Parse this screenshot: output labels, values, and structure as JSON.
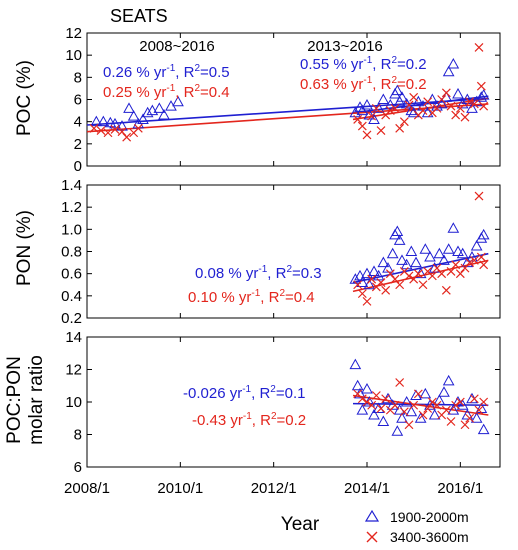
{
  "chart_data": [
    {
      "type": "scatter",
      "panel_label": "SEATS",
      "ylabel": "POC (%)",
      "ylim": [
        0,
        12
      ],
      "yticks": [
        0,
        2,
        4,
        6,
        8,
        10,
        12
      ],
      "period_labels": [
        "2008~2016",
        "2013~2016"
      ],
      "annotations": [
        {
          "text": "0.26 % yr",
          "sup": "-1",
          "rest": ", R",
          "r2sup": "2",
          "tail": "=0.5",
          "color": "#1f1fd1"
        },
        {
          "text": "0.25 % yr",
          "sup": "-1",
          "rest": ", R",
          "r2sup": "2",
          "tail": "=0.4",
          "color": "#e3261d"
        },
        {
          "text": "0.55 % yr",
          "sup": "-1",
          "rest": ", R",
          "r2sup": "2",
          "tail": "=0.2",
          "color": "#1f1fd1"
        },
        {
          "text": "0.63 % yr",
          "sup": "-1",
          "rest": ", R",
          "r2sup": "2",
          "tail": "=0.2",
          "color": "#e3261d"
        }
      ],
      "series": [
        {
          "name": "1900-2000m",
          "marker": "triangle",
          "color": "#1f1fd1",
          "x": [
            2008.2,
            2008.35,
            2008.5,
            2008.6,
            2008.75,
            2008.9,
            2009.0,
            2009.1,
            2009.2,
            2009.3,
            2009.4,
            2009.55,
            2009.65,
            2009.8,
            2009.95,
            2013.75,
            2013.85,
            2013.9,
            2014.0,
            2014.05,
            2014.15,
            2014.25,
            2014.35,
            2014.5,
            2014.6,
            2014.65,
            2014.7,
            2014.75,
            2014.85,
            2014.95,
            2015.0,
            2015.1,
            2015.2,
            2015.3,
            2015.4,
            2015.5,
            2015.6,
            2015.7,
            2015.75,
            2015.85,
            2015.95,
            2016.05,
            2016.15,
            2016.25,
            2016.35,
            2016.45,
            2016.5
          ],
          "y": [
            4.0,
            4.0,
            3.9,
            3.8,
            3.6,
            5.2,
            4.5,
            3.8,
            4.2,
            4.8,
            5.0,
            5.2,
            4.6,
            5.4,
            5.8,
            4.8,
            5.3,
            5.0,
            5.5,
            4.6,
            4.2,
            5.2,
            6.0,
            5.5,
            6.5,
            6.8,
            5.8,
            6.2,
            5.6,
            5.0,
            4.8,
            5.8,
            5.4,
            4.8,
            6.0,
            5.4,
            5.6,
            6.2,
            8.5,
            9.2,
            6.5,
            5.6,
            6.0,
            5.2,
            5.8,
            6.2,
            6.4
          ]
        },
        {
          "name": "3400-3600m",
          "marker": "x",
          "color": "#e3261d",
          "x": [
            2008.15,
            2008.3,
            2008.45,
            2008.6,
            2008.75,
            2008.85,
            2009.0,
            2009.1,
            2013.8,
            2013.9,
            2014.0,
            2014.1,
            2014.2,
            2014.3,
            2014.4,
            2014.5,
            2014.6,
            2014.7,
            2014.8,
            2014.9,
            2015.0,
            2015.1,
            2015.2,
            2015.3,
            2015.4,
            2015.5,
            2015.6,
            2015.7,
            2015.8,
            2015.9,
            2016.0,
            2016.1,
            2016.2,
            2016.3,
            2016.4,
            2016.45,
            2016.5
          ],
          "y": [
            3.4,
            3.2,
            3.0,
            3.3,
            3.1,
            2.6,
            3.0,
            3.4,
            4.2,
            3.6,
            2.8,
            4.5,
            5.2,
            3.2,
            4.6,
            5.0,
            5.2,
            3.4,
            4.0,
            5.5,
            6.2,
            4.6,
            5.0,
            5.8,
            4.8,
            5.2,
            6.0,
            6.6,
            5.4,
            4.6,
            5.2,
            4.4,
            5.8,
            5.6,
            10.7,
            7.2,
            5.4
          ]
        }
      ],
      "trend_lines": [
        {
          "color": "#1f1fd1",
          "x": [
            2008.0,
            2016.6
          ],
          "y": [
            3.7,
            6.1
          ]
        },
        {
          "color": "#1f1fd1",
          "x": [
            2013.7,
            2016.6
          ],
          "y": [
            4.8,
            6.3
          ]
        },
        {
          "color": "#e3261d",
          "x": [
            2008.0,
            2016.6
          ],
          "y": [
            3.1,
            5.6
          ]
        },
        {
          "color": "#e3261d",
          "x": [
            2013.7,
            2016.6
          ],
          "y": [
            4.2,
            6.1
          ]
        }
      ]
    },
    {
      "type": "scatter",
      "ylabel": "PON (%)",
      "ylim": [
        0.2,
        1.4
      ],
      "yticks": [
        0.2,
        0.4,
        0.6,
        0.8,
        1.0,
        1.2,
        1.4
      ],
      "annotations": [
        {
          "text": "0.08 % yr",
          "sup": "-1",
          "rest": ", R",
          "r2sup": "2",
          "tail": "=0.3",
          "color": "#1f1fd1"
        },
        {
          "text": "0.10 % yr",
          "sup": "-1",
          "rest": ", R",
          "r2sup": "2",
          "tail": "=0.4",
          "color": "#e3261d"
        }
      ],
      "series": [
        {
          "name": "1900-2000m",
          "marker": "triangle",
          "color": "#1f1fd1",
          "x": [
            2013.75,
            2013.85,
            2013.9,
            2014.0,
            2014.05,
            2014.15,
            2014.25,
            2014.35,
            2014.45,
            2014.55,
            2014.6,
            2014.65,
            2014.7,
            2014.75,
            2014.85,
            2014.95,
            2015.05,
            2015.15,
            2015.25,
            2015.35,
            2015.45,
            2015.55,
            2015.65,
            2015.75,
            2015.85,
            2015.95,
            2016.05,
            2016.15,
            2016.25,
            2016.35,
            2016.45,
            2016.5
          ],
          "y": [
            0.55,
            0.58,
            0.52,
            0.6,
            0.5,
            0.62,
            0.58,
            0.7,
            0.65,
            0.78,
            0.95,
            0.98,
            0.9,
            0.72,
            0.68,
            0.8,
            0.7,
            0.6,
            0.82,
            0.75,
            0.65,
            0.78,
            0.72,
            0.82,
            1.01,
            0.8,
            0.78,
            0.7,
            0.75,
            0.85,
            0.92,
            0.95
          ]
        },
        {
          "name": "3400-3600m",
          "marker": "x",
          "color": "#e3261d",
          "x": [
            2013.8,
            2013.9,
            2014.0,
            2014.1,
            2014.2,
            2014.3,
            2014.4,
            2014.5,
            2014.6,
            2014.7,
            2014.8,
            2014.9,
            2015.0,
            2015.1,
            2015.2,
            2015.3,
            2015.4,
            2015.5,
            2015.6,
            2015.7,
            2015.8,
            2015.9,
            2016.0,
            2016.1,
            2016.2,
            2016.3,
            2016.4,
            2016.45,
            2016.5
          ],
          "y": [
            0.5,
            0.42,
            0.35,
            0.55,
            0.48,
            0.52,
            0.45,
            0.6,
            0.55,
            0.5,
            0.62,
            0.58,
            0.55,
            0.6,
            0.5,
            0.62,
            0.58,
            0.65,
            0.6,
            0.45,
            0.62,
            0.68,
            0.6,
            0.65,
            0.7,
            0.72,
            1.3,
            0.75,
            0.68
          ]
        }
      ],
      "trend_lines": [
        {
          "color": "#1f1fd1",
          "x": [
            2013.7,
            2016.6
          ],
          "y": [
            0.52,
            0.78
          ]
        },
        {
          "color": "#e3261d",
          "x": [
            2013.7,
            2016.6
          ],
          "y": [
            0.44,
            0.72
          ]
        }
      ]
    },
    {
      "type": "scatter",
      "ylabel_line1": "POC:PON",
      "ylabel_line2": "molar ratio",
      "ylim": [
        6,
        14
      ],
      "yticks": [
        6,
        8,
        10,
        12,
        14
      ],
      "xlim": [
        2008.0,
        2016.85
      ],
      "xticks": [
        2008.0,
        2010.0,
        2012.0,
        2014.0,
        2016.0
      ],
      "xticklabels": [
        "2008/1",
        "2010/1",
        "2012/1",
        "2014/1",
        "2016/1"
      ],
      "xlabel": "Year",
      "annotations": [
        {
          "text": "-0.026 yr",
          "sup": "-1",
          "rest": ", R",
          "r2sup": "2",
          "tail": "=0.1",
          "color": "#1f1fd1"
        },
        {
          "text": "-0.43 yr",
          "sup": "-1",
          "rest": ", R",
          "r2sup": "2",
          "tail": "=0.2",
          "color": "#e3261d"
        }
      ],
      "series": [
        {
          "name": "1900-2000m",
          "marker": "triangle",
          "color": "#1f1fd1",
          "x": [
            2013.75,
            2013.8,
            2013.85,
            2013.9,
            2014.0,
            2014.05,
            2014.15,
            2014.25,
            2014.35,
            2014.45,
            2014.55,
            2014.65,
            2014.7,
            2014.75,
            2014.85,
            2014.95,
            2015.05,
            2015.15,
            2015.25,
            2015.35,
            2015.45,
            2015.55,
            2015.65,
            2015.75,
            2015.85,
            2015.95,
            2016.05,
            2016.15,
            2016.25,
            2016.35,
            2016.45,
            2016.5
          ],
          "y": [
            12.3,
            11.0,
            10.5,
            9.5,
            10.8,
            10.0,
            9.2,
            9.6,
            8.8,
            10.2,
            9.8,
            8.2,
            9.5,
            9.0,
            10.0,
            9.4,
            10.4,
            9.0,
            10.5,
            9.8,
            9.2,
            10.1,
            10.6,
            11.3,
            9.5,
            10.0,
            9.8,
            9.2,
            10.2,
            9.0,
            9.6,
            8.3
          ]
        },
        {
          "name": "3400-3600m",
          "marker": "x",
          "color": "#e3261d",
          "x": [
            2013.8,
            2013.9,
            2014.0,
            2014.1,
            2014.2,
            2014.3,
            2014.4,
            2014.5,
            2014.6,
            2014.7,
            2014.8,
            2014.9,
            2015.0,
            2015.1,
            2015.2,
            2015.3,
            2015.4,
            2015.5,
            2015.6,
            2015.7,
            2015.8,
            2015.9,
            2016.0,
            2016.1,
            2016.2,
            2016.3,
            2016.4,
            2016.5
          ],
          "y": [
            10.5,
            10.2,
            10.0,
            9.8,
            10.4,
            9.6,
            10.2,
            9.5,
            9.8,
            11.2,
            9.4,
            8.6,
            9.8,
            10.5,
            9.2,
            9.6,
            10.0,
            9.8,
            9.2,
            9.5,
            8.8,
            9.8,
            10.0,
            8.6,
            9.0,
            10.2,
            9.5,
            10.0
          ]
        }
      ],
      "trend_lines": [
        {
          "color": "#1f1fd1",
          "x": [
            2013.7,
            2016.6
          ],
          "y": [
            9.9,
            9.8
          ]
        },
        {
          "color": "#e3261d",
          "x": [
            2013.7,
            2016.6
          ],
          "y": [
            10.4,
            9.2
          ]
        }
      ]
    }
  ],
  "legend": [
    {
      "label": "1900-2000m",
      "marker": "triangle",
      "color": "#1f1fd1"
    },
    {
      "label": "3400-3600m",
      "marker": "x",
      "color": "#e3261d"
    }
  ]
}
